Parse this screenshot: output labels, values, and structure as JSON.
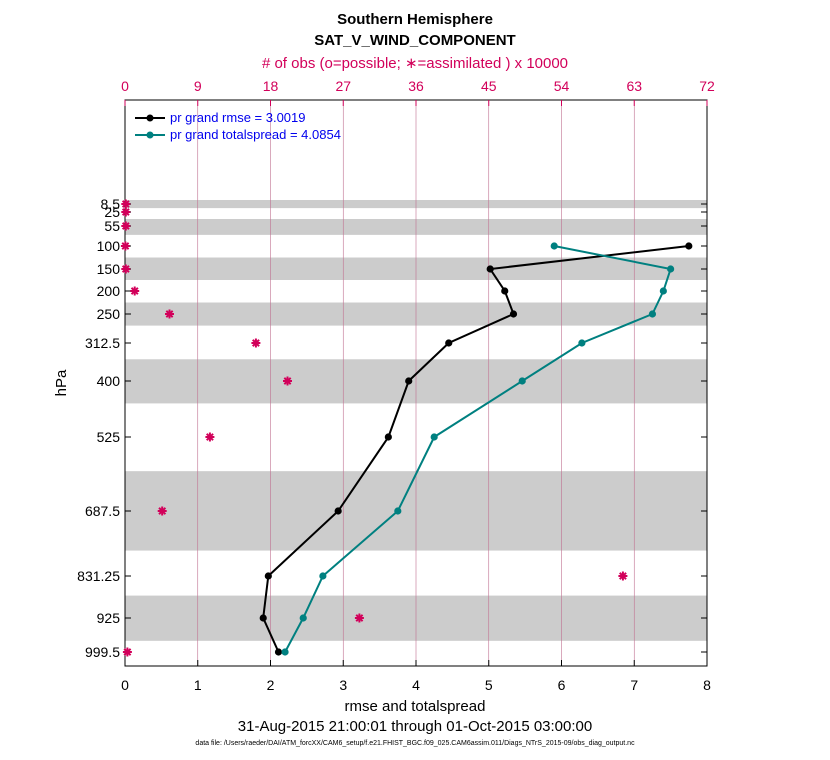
{
  "chart_data": {
    "type": "line",
    "title": "Southern Hemisphere",
    "subtitle": "SAT_V_WIND_COMPONENT",
    "xlabel": "rmse and totalspread",
    "ylabel": "hPa",
    "top_xlabel": "# of obs (o=possible; ∗=assimilated ) x 10000",
    "xlim": [
      0,
      8
    ],
    "xticks": [
      "0",
      "1",
      "2",
      "3",
      "4",
      "5",
      "6",
      "7",
      "8"
    ],
    "top_xlim": [
      0,
      72
    ],
    "top_xticks": [
      "0",
      "9",
      "18",
      "27",
      "36",
      "45",
      "54",
      "63",
      "72"
    ],
    "yticks": [
      "8.5",
      "25",
      "55",
      "100",
      "150",
      "200",
      "250",
      "312.5",
      "400",
      "525",
      "687.5",
      "831.25",
      "925",
      "999.5"
    ],
    "series": [
      {
        "name": "pr grand rmse = 3.0019",
        "color": "#000000",
        "levels": [
          100,
          150,
          200,
          250,
          312.5,
          400,
          525,
          687.5,
          831.25,
          925,
          999.5
        ],
        "values": [
          7.75,
          5.02,
          5.22,
          5.34,
          4.45,
          3.9,
          3.62,
          2.93,
          1.97,
          1.9,
          2.11
        ]
      },
      {
        "name": "pr grand totalspread = 4.0854",
        "color": "#008080",
        "levels": [
          100,
          150,
          200,
          250,
          312.5,
          400,
          525,
          687.5,
          831.25,
          925,
          999.5
        ],
        "values": [
          5.9,
          7.5,
          7.4,
          7.25,
          6.28,
          5.46,
          4.25,
          3.75,
          2.72,
          2.45,
          2.2
        ]
      }
    ],
    "obs_series": {
      "name": "# of obs assimilated",
      "color": "#d2005a",
      "levels": [
        8.5,
        25,
        55,
        100,
        150,
        200,
        250,
        312.5,
        400,
        525,
        687.5,
        831.25,
        925,
        999.5
      ],
      "values": [
        0.1,
        0.1,
        0.1,
        0.05,
        0.1,
        1.2,
        5.5,
        16.2,
        20.1,
        10.5,
        4.6,
        61.6,
        29.0,
        0.3
      ]
    },
    "shaded_bands_hPa": [
      [
        0,
        17
      ],
      [
        40,
        75
      ],
      [
        125,
        175
      ],
      [
        225,
        275
      ],
      [
        350,
        450
      ],
      [
        600,
        775
      ],
      [
        875,
        975
      ]
    ],
    "legend_position": "top-left",
    "grid": true,
    "date_range": "31-Aug-2015 21:00:01 through 01-Oct-2015 03:00:00",
    "data_file": "data file: /Users/raeder/DAI/ATM_forcXX/CAM6_setup/f.e21.FHIST_BGC.f09_025.CAM6assim.011/Diags_NTrS_2015-09/obs_diag_output.nc"
  }
}
